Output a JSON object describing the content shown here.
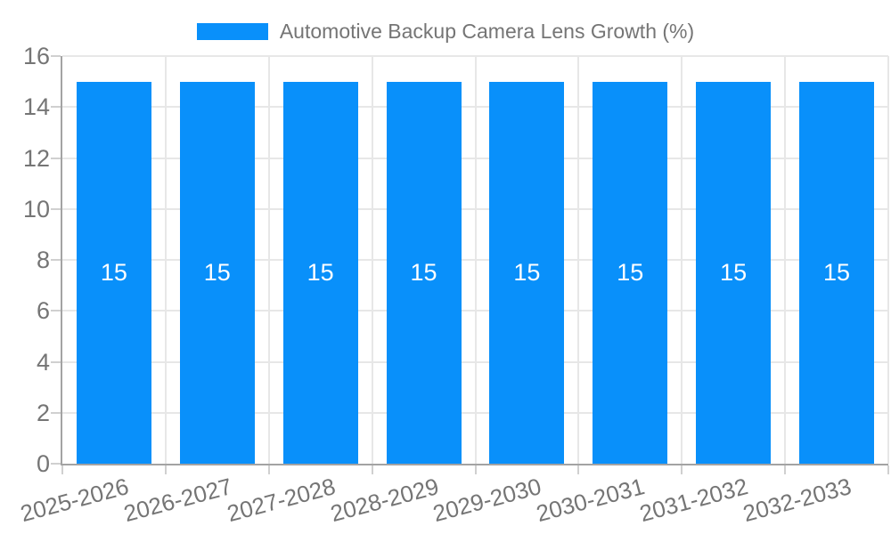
{
  "chart_data": {
    "type": "bar",
    "title": "Automotive Backup Camera Lens Growth (%)",
    "categories": [
      "2025-2026",
      "2026-2027",
      "2027-2028",
      "2028-2029",
      "2029-2030",
      "2030-2031",
      "2031-2032",
      "2032-2033"
    ],
    "values": [
      15,
      15,
      15,
      15,
      15,
      15,
      15,
      15
    ],
    "bar_value_labels": [
      "15",
      "15",
      "15",
      "15",
      "15",
      "15",
      "15",
      "15"
    ],
    "xlabel": "",
    "ylabel": "",
    "ylim": [
      0,
      16
    ],
    "yticks": [
      0,
      2,
      4,
      6,
      8,
      10,
      12,
      14,
      16
    ],
    "grid": "on",
    "legend_position": "top-center",
    "colors": {
      "bar": "#0990fa",
      "axis_line": "#a3a3a3",
      "gridline": "#e7e7e7",
      "tick_mark": "#d0d0d0",
      "tick_text": "#757575",
      "title_text": "#757575",
      "bar_label_text": "#ffffff",
      "background": "#ffffff"
    }
  }
}
